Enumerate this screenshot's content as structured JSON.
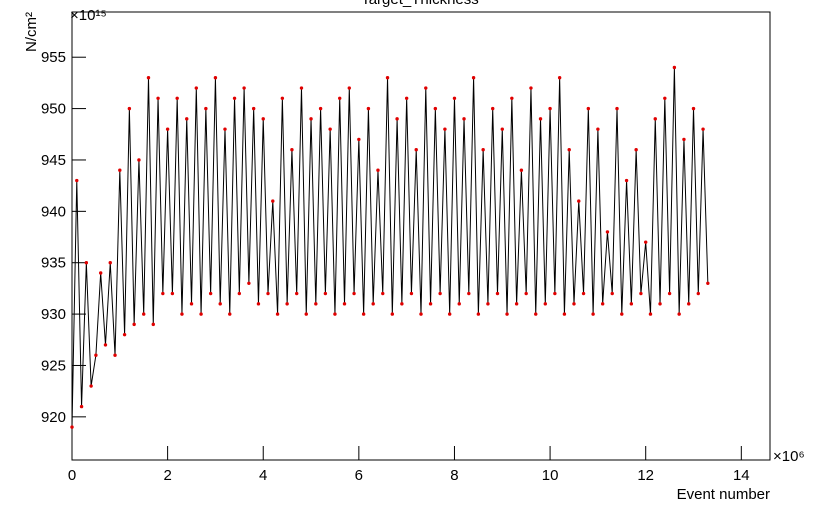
{
  "chart_data": {
    "type": "line",
    "title": "Target_Thickness",
    "x_label": "Event number",
    "y_label": "N/cm²",
    "x_multiplier": "×10⁶",
    "y_multiplier": "×10¹⁵",
    "line_color": "#000000",
    "marker_color": "#e00000",
    "xlim": [
      0,
      14.6
    ],
    "ylim": [
      915.8,
      959.4
    ],
    "xticks": [
      0,
      2,
      4,
      6,
      8,
      10,
      12,
      14
    ],
    "yticks": [
      920,
      925,
      930,
      935,
      940,
      945,
      950,
      955
    ],
    "x": [
      0,
      0.1,
      0.2,
      0.3,
      0.4,
      0.5,
      0.6,
      0.7,
      0.8,
      0.9,
      1,
      1.1,
      1.2,
      1.3,
      1.4,
      1.5,
      1.6,
      1.7,
      1.8,
      1.9,
      2,
      2.1,
      2.2,
      2.3,
      2.4,
      2.5,
      2.6,
      2.7,
      2.8,
      2.9,
      3,
      3.1,
      3.2,
      3.3,
      3.4,
      3.5,
      3.6,
      3.7,
      3.8,
      3.9,
      4,
      4.1,
      4.2,
      4.3,
      4.4,
      4.5,
      4.6,
      4.7,
      4.8,
      4.9,
      5,
      5.1,
      5.2,
      5.3,
      5.4,
      5.5,
      5.6,
      5.7,
      5.8,
      5.9,
      6,
      6.1,
      6.2,
      6.3,
      6.4,
      6.5,
      6.6,
      6.7,
      6.8,
      6.9,
      7,
      7.1,
      7.2,
      7.3,
      7.4,
      7.5,
      7.6,
      7.7,
      7.8,
      7.9,
      8,
      8.1,
      8.2,
      8.3,
      8.4,
      8.5,
      8.6,
      8.7,
      8.8,
      8.9,
      9,
      9.1,
      9.2,
      9.3,
      9.4,
      9.5,
      9.6,
      9.7,
      9.8,
      9.9,
      10,
      10.1,
      10.2,
      10.3,
      10.4,
      10.5,
      10.6,
      10.7,
      10.8,
      10.9,
      11,
      11.1,
      11.2,
      11.3,
      11.4,
      11.5,
      11.6,
      11.7,
      11.8,
      11.9,
      12,
      12.1,
      12.2,
      12.3,
      12.4,
      12.5,
      12.6,
      12.7,
      12.8,
      12.9,
      13,
      13.1,
      13.2,
      13.3
    ],
    "y": [
      919,
      943,
      921,
      935,
      923,
      926,
      934,
      927,
      935,
      926,
      944,
      928,
      950,
      929,
      945,
      930,
      953,
      929,
      951,
      932,
      948,
      932,
      951,
      930,
      949,
      931,
      952,
      930,
      950,
      932,
      953,
      931,
      948,
      930,
      951,
      932,
      952,
      933,
      950,
      931,
      949,
      932,
      941,
      930,
      951,
      931,
      946,
      932,
      952,
      930,
      949,
      931,
      950,
      932,
      948,
      930,
      951,
      931,
      952,
      932,
      947,
      930,
      950,
      931,
      944,
      932,
      953,
      930,
      949,
      931,
      951,
      932,
      946,
      930,
      952,
      931,
      950,
      932,
      948,
      930,
      951,
      931,
      949,
      932,
      953,
      930,
      946,
      931,
      950,
      932,
      948,
      930,
      951,
      931,
      944,
      932,
      952,
      930,
      949,
      931,
      950,
      932,
      953,
      930,
      946,
      931,
      941,
      932,
      950,
      930,
      948,
      931,
      938,
      932,
      950,
      930,
      943,
      931,
      946,
      932,
      937,
      930,
      949,
      931,
      951,
      932,
      954,
      930,
      947,
      931,
      950,
      932,
      948,
      933
    ]
  }
}
